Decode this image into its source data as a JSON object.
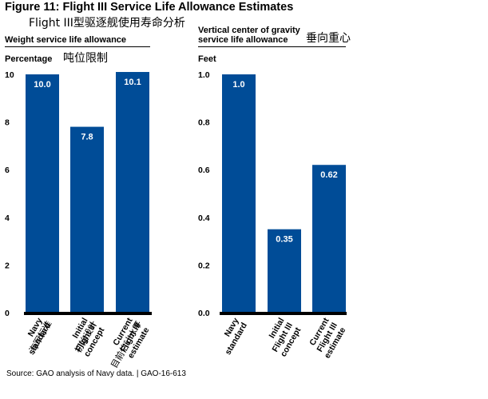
{
  "figure": {
    "title": "Figure 11: Flight III Service Life Allowance Estimates",
    "title_translation": "Flight III型驱逐舰使用寿命分析"
  },
  "source_note": "Source: GAO analysis of Navy data.  |  GAO-16-613",
  "colors": {
    "bar": "#004c97",
    "axis": "#000000",
    "label_on_bar": "#ffffff"
  },
  "chart_data": [
    {
      "type": "bar",
      "title": "Weight service life allowance",
      "title_translation": "吨位限制",
      "ylabel": "Percentage",
      "ylim": [
        0,
        10
      ],
      "yticks": [
        "0",
        "2",
        "4",
        "6",
        "8",
        "10"
      ],
      "categories": [
        [
          "Navy",
          "standard"
        ],
        [
          "Initial",
          "Flight III",
          "concept"
        ],
        [
          "Current",
          "Flight III",
          "estimate"
        ]
      ],
      "category_translations": [
        "海军标准",
        "初始设计",
        "目前估计水平"
      ],
      "values": [
        10.0,
        7.8,
        10.1
      ],
      "value_labels": [
        "10.0",
        "7.8",
        "10.1"
      ]
    },
    {
      "type": "bar",
      "title": "Vertical center of gravity service life allowance",
      "title_lines": [
        "Vertical center of gravity",
        "service life allowance"
      ],
      "title_translation": "垂向重心",
      "ylabel": "Feet",
      "ylim": [
        0,
        1.0
      ],
      "yticks": [
        "0.0",
        "0.2",
        "0.4",
        "0.6",
        "0.8",
        "1.0"
      ],
      "categories": [
        [
          "Navy",
          "standard"
        ],
        [
          "Initial",
          "Flight III",
          "concept"
        ],
        [
          "Current",
          "Flight III",
          "estimate"
        ]
      ],
      "values": [
        1.0,
        0.35,
        0.62
      ],
      "value_labels": [
        "1.0",
        "0.35",
        "0.62"
      ]
    }
  ]
}
